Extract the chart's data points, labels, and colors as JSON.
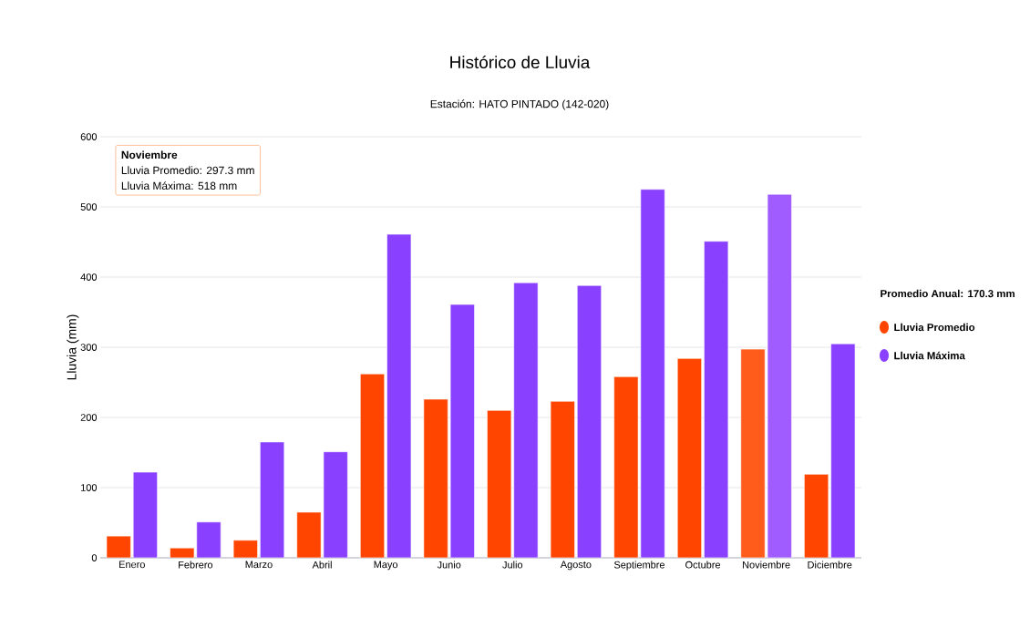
{
  "chart_data": {
    "type": "bar",
    "title": "Histórico de Lluvia",
    "subtitle": "Estación: HATO PINTADO (142-020)",
    "ylabel": "Lluvia (mm)",
    "legend_title": "Promedio Anual: 170.3 mm",
    "categories": [
      "Enero",
      "Febrero",
      "Marzo",
      "Abril",
      "Mayo",
      "Junio",
      "Julio",
      "Agosto",
      "Septiembre",
      "Octubre",
      "Noviembre",
      "Diciembre"
    ],
    "series": [
      {
        "name": "Lluvia Promedio",
        "color": "#ff4500",
        "colors": [
          "#ff4500",
          "#ff4500",
          "#ff4500",
          "#ff4500",
          "#ff4500",
          "#ff4500",
          "#ff4500",
          "#ff4500",
          "#ff4500",
          "#ff4500",
          "#ff5c1c",
          "#ff4500"
        ],
        "values": [
          31,
          14,
          25,
          65,
          262,
          226,
          210,
          223,
          258,
          284,
          297.3,
          119
        ]
      },
      {
        "name": "Lluvia Máxima",
        "color": "#8a40ff",
        "colors": [
          "#8a40ff",
          "#8a40ff",
          "#8a40ff",
          "#8a40ff",
          "#8a40ff",
          "#8a40ff",
          "#8a40ff",
          "#8a40ff",
          "#8a40ff",
          "#8a40ff",
          "#a15cff",
          "#8a40ff"
        ],
        "values": [
          122,
          51,
          165,
          151,
          461,
          361,
          392,
          388,
          525,
          451,
          518,
          305
        ]
      }
    ],
    "ylim": [
      0,
      600
    ],
    "yticks": [
      0,
      100,
      200,
      300,
      400,
      500,
      600
    ],
    "grid": "y",
    "legend": "right",
    "annotations": [
      "Noviembre",
      "Lluvia Promedio: 297.3 mm",
      "Lluvia Máxima: 518 mm"
    ]
  }
}
